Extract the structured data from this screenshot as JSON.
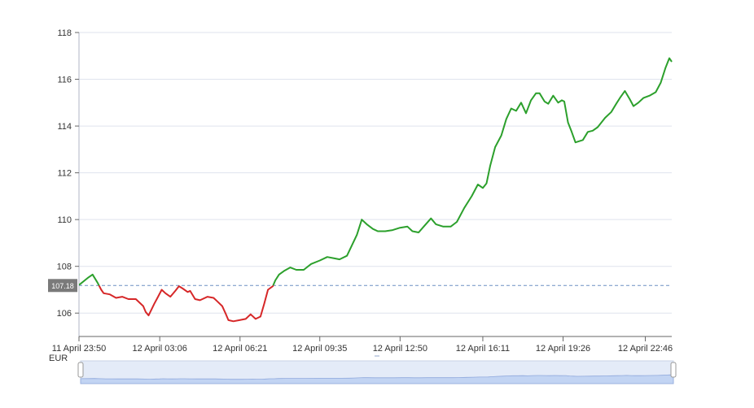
{
  "chart_data": {
    "type": "line",
    "unit_label": "EUR",
    "ylim": [
      105,
      118
    ],
    "y_ticks": [
      106,
      108,
      110,
      112,
      114,
      116,
      118
    ],
    "x_tick_labels": [
      "11 April 23:50",
      "12 April 03:06",
      "12 April 06:21",
      "12 April 09:35",
      "12 April 12:50",
      "12 April 16:11",
      "12 April 19:26",
      "12 April 22:46"
    ],
    "x_tick_hours": [
      0,
      3.27,
      6.52,
      9.75,
      13.0,
      16.35,
      19.6,
      22.93
    ],
    "x_range_hours": [
      0,
      24.0
    ],
    "reference": {
      "value": 107.18,
      "label": "107.18",
      "color": "#6b8fc2"
    },
    "colors": {
      "above": "#2ca02c",
      "below": "#d62728",
      "grid": "#dfe3ee"
    },
    "grid": true,
    "series": [
      {
        "points": [
          [
            0,
            107.2
          ],
          [
            0.35,
            107.5
          ],
          [
            0.55,
            107.65
          ],
          [
            0.75,
            107.3
          ],
          [
            0.9,
            107.0
          ],
          [
            1.0,
            106.85
          ],
          [
            1.25,
            106.8
          ],
          [
            1.5,
            106.65
          ],
          [
            1.75,
            106.7
          ],
          [
            2.0,
            106.6
          ],
          [
            2.3,
            106.6
          ],
          [
            2.6,
            106.3
          ],
          [
            2.7,
            106.05
          ],
          [
            2.82,
            105.9
          ],
          [
            3.05,
            106.4
          ],
          [
            3.2,
            106.7
          ],
          [
            3.35,
            107.0
          ],
          [
            3.5,
            106.85
          ],
          [
            3.7,
            106.7
          ],
          [
            3.9,
            106.95
          ],
          [
            4.05,
            107.15
          ],
          [
            4.2,
            107.05
          ],
          [
            4.4,
            106.9
          ],
          [
            4.5,
            106.95
          ],
          [
            4.7,
            106.6
          ],
          [
            4.9,
            106.55
          ],
          [
            5.2,
            106.7
          ],
          [
            5.45,
            106.65
          ],
          [
            5.6,
            106.5
          ],
          [
            5.8,
            106.3
          ],
          [
            5.95,
            105.95
          ],
          [
            6.05,
            105.7
          ],
          [
            6.25,
            105.65
          ],
          [
            6.5,
            105.7
          ],
          [
            6.75,
            105.75
          ],
          [
            6.95,
            105.95
          ],
          [
            7.15,
            105.75
          ],
          [
            7.35,
            105.85
          ],
          [
            7.5,
            106.4
          ],
          [
            7.65,
            107.0
          ],
          [
            7.85,
            107.15
          ],
          [
            7.95,
            107.4
          ],
          [
            8.1,
            107.65
          ],
          [
            8.3,
            107.8
          ],
          [
            8.55,
            107.95
          ],
          [
            8.8,
            107.85
          ],
          [
            9.1,
            107.85
          ],
          [
            9.4,
            108.1
          ],
          [
            9.75,
            108.25
          ],
          [
            10.05,
            108.4
          ],
          [
            10.3,
            108.35
          ],
          [
            10.55,
            108.3
          ],
          [
            10.85,
            108.45
          ],
          [
            11.05,
            108.9
          ],
          [
            11.25,
            109.35
          ],
          [
            11.45,
            110.0
          ],
          [
            11.65,
            109.8
          ],
          [
            11.9,
            109.6
          ],
          [
            12.1,
            109.5
          ],
          [
            12.4,
            109.5
          ],
          [
            12.7,
            109.55
          ],
          [
            13.0,
            109.65
          ],
          [
            13.3,
            109.7
          ],
          [
            13.5,
            109.5
          ],
          [
            13.75,
            109.45
          ],
          [
            14.0,
            109.75
          ],
          [
            14.25,
            110.05
          ],
          [
            14.45,
            109.8
          ],
          [
            14.75,
            109.7
          ],
          [
            15.05,
            109.7
          ],
          [
            15.3,
            109.9
          ],
          [
            15.6,
            110.5
          ],
          [
            15.9,
            111.0
          ],
          [
            16.15,
            111.5
          ],
          [
            16.35,
            111.35
          ],
          [
            16.5,
            111.55
          ],
          [
            16.65,
            112.3
          ],
          [
            16.85,
            113.1
          ],
          [
            17.1,
            113.6
          ],
          [
            17.3,
            114.3
          ],
          [
            17.5,
            114.75
          ],
          [
            17.7,
            114.65
          ],
          [
            17.9,
            115.0
          ],
          [
            18.1,
            114.55
          ],
          [
            18.3,
            115.1
          ],
          [
            18.5,
            115.4
          ],
          [
            18.65,
            115.4
          ],
          [
            18.85,
            115.05
          ],
          [
            19.0,
            114.95
          ],
          [
            19.2,
            115.3
          ],
          [
            19.4,
            115.0
          ],
          [
            19.55,
            115.1
          ],
          [
            19.65,
            115.05
          ],
          [
            19.8,
            114.15
          ],
          [
            19.95,
            113.75
          ],
          [
            20.1,
            113.3
          ],
          [
            20.4,
            113.4
          ],
          [
            20.6,
            113.75
          ],
          [
            20.8,
            113.8
          ],
          [
            21.0,
            113.95
          ],
          [
            21.3,
            114.35
          ],
          [
            21.55,
            114.6
          ],
          [
            21.75,
            114.95
          ],
          [
            21.9,
            115.2
          ],
          [
            22.1,
            115.5
          ],
          [
            22.3,
            115.15
          ],
          [
            22.45,
            114.85
          ],
          [
            22.65,
            115.0
          ],
          [
            22.85,
            115.2
          ],
          [
            23.1,
            115.3
          ],
          [
            23.35,
            115.45
          ],
          [
            23.55,
            115.85
          ],
          [
            23.75,
            116.5
          ],
          [
            23.9,
            116.9
          ],
          [
            24.0,
            116.75
          ]
        ]
      }
    ]
  }
}
